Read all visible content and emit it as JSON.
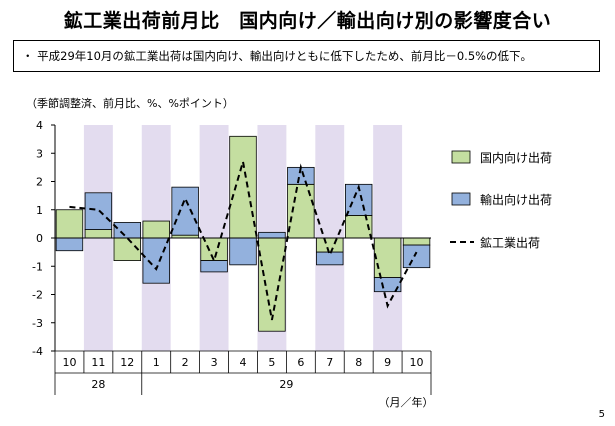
{
  "title": "鉱工業出荷前月比　国内向け／輸出向け別の影響度合い",
  "note": "・ 平成29年10月の鉱工業出荷は国内向け、輸出向けともに低下したため、前月比－0.5%の低下。",
  "unit_label": "（季節調整済、前月比、%、%ポイント）",
  "axis_unit": "（月／年）",
  "page_number": "5",
  "colors": {
    "domestic": "#c4dea0",
    "export": "#93b1dd",
    "shade": "#e3dcef",
    "line": "#000000"
  },
  "chart_data": {
    "type": "bar",
    "stacked": true,
    "categories": [
      "10",
      "11",
      "12",
      "1",
      "2",
      "3",
      "4",
      "5",
      "6",
      "7",
      "8",
      "9",
      "10"
    ],
    "year_labels": [
      {
        "label": "28",
        "from": 0,
        "to": 2
      },
      {
        "label": "29",
        "from": 3,
        "to": 12
      }
    ],
    "shaded_categories": [
      1,
      3,
      5,
      7,
      9,
      11
    ],
    "ylim": [
      -4,
      4
    ],
    "yticks": [
      4,
      3,
      2,
      1,
      0,
      -1,
      -2,
      -3,
      -4
    ],
    "series": [
      {
        "name": "国内向け出荷",
        "type": "bar",
        "values": [
          1.0,
          0.3,
          -0.8,
          0.6,
          0.1,
          -0.8,
          3.6,
          -3.3,
          1.9,
          -0.5,
          0.8,
          -1.4,
          -0.25
        ]
      },
      {
        "name": "輸出向け出荷",
        "type": "bar",
        "values": [
          -0.45,
          1.3,
          0.55,
          -1.6,
          1.7,
          -0.4,
          -0.95,
          0.2,
          0.6,
          -0.45,
          1.1,
          -0.5,
          -0.8
        ]
      },
      {
        "name": "鉱工業出荷",
        "type": "line",
        "values": [
          1.1,
          1.0,
          0.0,
          -1.1,
          1.4,
          -0.8,
          2.7,
          -2.9,
          2.5,
          -0.6,
          1.8,
          -2.4,
          -0.5
        ]
      }
    ],
    "legend_position": "right"
  }
}
